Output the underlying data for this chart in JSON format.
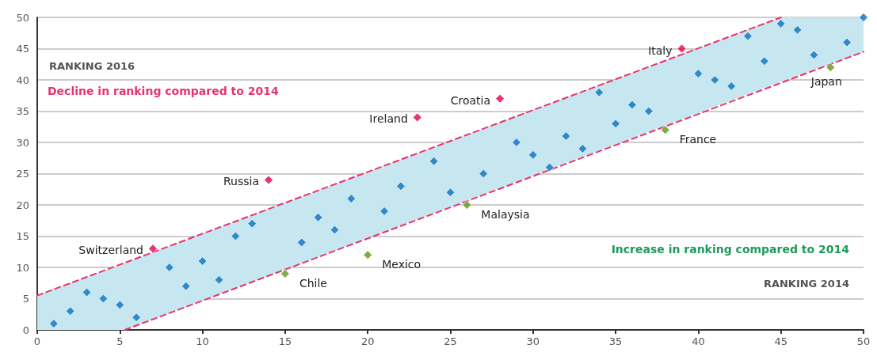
{
  "chart_data": {
    "type": "scatter",
    "xlabel": "RANKING 2014",
    "ylabel": "RANKING 2016",
    "xlim": [
      0,
      50
    ],
    "ylim": [
      0,
      50
    ],
    "xticks": [
      0,
      5,
      10,
      15,
      20,
      25,
      30,
      35,
      40,
      45,
      50
    ],
    "yticks": [
      0,
      5,
      10,
      15,
      20,
      25,
      30,
      35,
      40,
      45,
      50
    ],
    "grid": "y",
    "marker": "diamond",
    "series": [
      {
        "type": "line",
        "color": "#c6e6f0",
        "x": [
          0,
          5.3,
          45,
          50
        ],
        "values": [
          null,
          null,
          null,
          null
        ],
        "lower": [
          0,
          0,
          39.7,
          44.5
        ],
        "upper": [
          5.5,
          10.7,
          50,
          50
        ]
      },
      {
        "type": "line",
        "color": "#e8336d",
        "line_style": "dashed",
        "marker": "none",
        "x": [
          0,
          45
        ],
        "values": [
          5.5,
          50
        ]
      },
      {
        "type": "line",
        "color": "#e8336d",
        "line_style": "dashed",
        "marker": "none",
        "x": [
          5.3,
          50
        ],
        "values": [
          0,
          44.5
        ]
      },
      {
        "color": "#0a72c0",
        "x": [
          1,
          2,
          3,
          4,
          5,
          6,
          8,
          9,
          10,
          11,
          12,
          13,
          16,
          17,
          18,
          19,
          21,
          22,
          24,
          25,
          27,
          29,
          30,
          31,
          32,
          33,
          34,
          35,
          36,
          37,
          40,
          41,
          42,
          43,
          44,
          45,
          46,
          47,
          49,
          50
        ],
        "values": [
          1,
          3,
          6,
          5,
          4,
          2,
          10,
          7,
          11,
          8,
          15,
          17,
          14,
          18,
          16,
          21,
          19,
          23,
          27,
          22,
          25,
          30,
          28,
          26,
          31,
          29,
          38,
          33,
          36,
          35,
          41,
          40,
          39,
          47,
          43,
          49,
          48,
          44,
          46,
          50
        ]
      },
      {
        "color": "#e5004f",
        "x": [
          7,
          14,
          23,
          28,
          39
        ],
        "values": [
          13,
          24,
          34,
          37,
          45
        ]
      },
      {
        "color": "#5e9a1a",
        "x": [
          15,
          20,
          26,
          38,
          48
        ],
        "values": [
          9,
          12,
          20,
          32,
          42
        ]
      }
    ],
    "annotations": [
      "Decline in ranking compared to 2014",
      "Increase in ranking compared to 2014",
      {
        "text": "Switzerland",
        "x": 7,
        "y": 13
      },
      {
        "text": "Russia",
        "x": 14,
        "y": 24
      },
      {
        "text": "Ireland",
        "x": 23,
        "y": 34
      },
      {
        "text": "Croatia",
        "x": 28,
        "y": 37
      },
      {
        "text": "Italy",
        "x": 39,
        "y": 45
      },
      {
        "text": "Chile",
        "x": 15,
        "y": 9
      },
      {
        "text": "Mexico",
        "x": 20,
        "y": 12
      },
      {
        "text": "Malaysia",
        "x": 26,
        "y": 20
      },
      {
        "text": "France",
        "x": 38,
        "y": 32
      },
      {
        "text": "Japan",
        "x": 48,
        "y": 42
      }
    ]
  }
}
